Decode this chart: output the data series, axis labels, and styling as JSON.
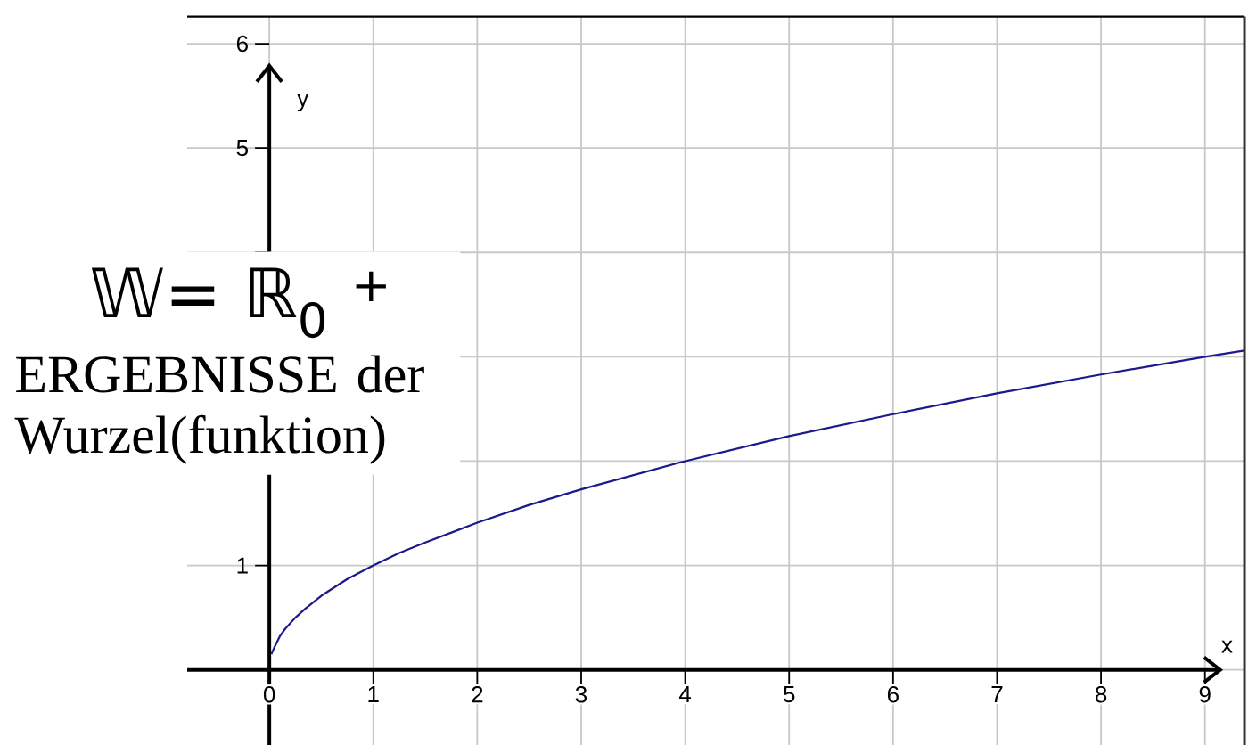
{
  "chart_data": {
    "type": "line",
    "xlabel": "x",
    "ylabel": "y",
    "annotations": [
      "𝕎= ℝ$_{0}$ $^{+}$",
      "ERGEBNISSE der Wurzel(funktion)"
    ],
    "x": [
      0.02,
      0.05,
      0.1,
      0.15,
      0.25,
      0.35,
      0.5,
      0.75,
      1,
      1.25,
      1.5,
      2,
      2.5,
      3,
      4,
      5,
      6,
      7,
      8,
      9,
      9.38
    ],
    "series": [
      {
        "color": "#1a1a8c",
        "values": [
          0.15,
          0.22,
          0.32,
          0.39,
          0.5,
          0.59,
          0.71,
          0.87,
          1,
          1.12,
          1.22,
          1.41,
          1.58,
          1.73,
          2,
          2.24,
          2.45,
          2.65,
          2.83,
          3,
          3.06
        ]
      }
    ],
    "xlim": [
      -0.79,
      9.38
    ],
    "ylim": [
      -0.72,
      6.26
    ],
    "xticks": [
      0,
      1,
      2,
      3,
      4,
      5,
      6,
      7,
      8,
      9
    ],
    "yticks": [
      {
        "value": 0,
        "label": null
      },
      1,
      {
        "value": 2,
        "label": null
      },
      {
        "value": 3,
        "label": null
      },
      {
        "value": 4,
        "label": null
      },
      5,
      6
    ],
    "grid": true
  }
}
